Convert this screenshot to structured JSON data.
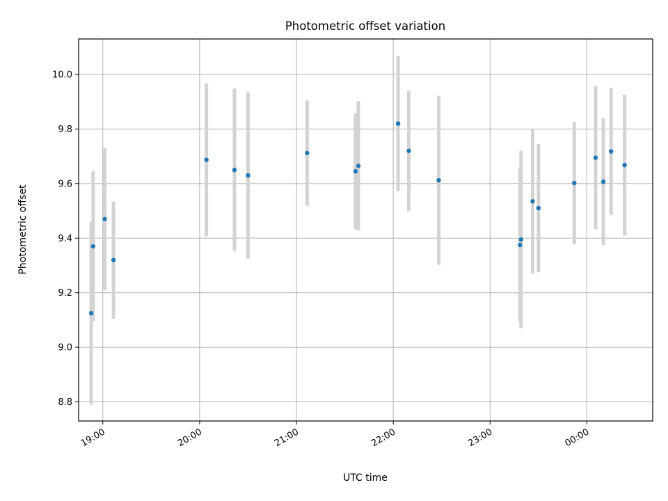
{
  "chart_data": {
    "type": "scatter",
    "title": "Photometric offset variation",
    "xlabel": "UTC time",
    "ylabel": "Photometric offset",
    "x_unit": "hours since 18:00 UTC",
    "xlim": [
      18.75,
      24.68
    ],
    "ylim": [
      8.73,
      10.13
    ],
    "x_ticks": [
      {
        "value": 19,
        "label": "19:00"
      },
      {
        "value": 20,
        "label": "20:00"
      },
      {
        "value": 21,
        "label": "21:00"
      },
      {
        "value": 22,
        "label": "22:00"
      },
      {
        "value": 23,
        "label": "23:00"
      },
      {
        "value": 24,
        "label": "00:00"
      }
    ],
    "y_ticks": [
      8.8,
      9.0,
      9.2,
      9.4,
      9.6,
      9.8,
      10.0
    ],
    "y_tick_labels": [
      "8.8",
      "9.0",
      "9.2",
      "9.4",
      "9.6",
      "9.8",
      "10.0"
    ],
    "grid": true,
    "marker_color": "#1f77b4",
    "errorbar_color": "#d3d3d3",
    "points": [
      {
        "x": 18.88,
        "y": 9.125,
        "err": 0.335
      },
      {
        "x": 18.9,
        "y": 9.37,
        "err": 0.275
      },
      {
        "x": 19.02,
        "y": 9.47,
        "err": 0.26
      },
      {
        "x": 19.11,
        "y": 9.32,
        "err": 0.215
      },
      {
        "x": 20.07,
        "y": 9.687,
        "err": 0.28
      },
      {
        "x": 20.36,
        "y": 9.65,
        "err": 0.298
      },
      {
        "x": 20.5,
        "y": 9.63,
        "err": 0.305
      },
      {
        "x": 21.11,
        "y": 9.712,
        "err": 0.193
      },
      {
        "x": 21.61,
        "y": 9.645,
        "err": 0.212
      },
      {
        "x": 21.64,
        "y": 9.665,
        "err": 0.237
      },
      {
        "x": 22.05,
        "y": 9.82,
        "err": 0.248
      },
      {
        "x": 22.16,
        "y": 9.72,
        "err": 0.22
      },
      {
        "x": 22.47,
        "y": 9.612,
        "err": 0.31
      },
      {
        "x": 23.31,
        "y": 9.375,
        "err": 0.28
      },
      {
        "x": 23.32,
        "y": 9.395,
        "err": 0.325
      },
      {
        "x": 23.44,
        "y": 9.535,
        "err": 0.265
      },
      {
        "x": 23.5,
        "y": 9.51,
        "err": 0.235
      },
      {
        "x": 23.87,
        "y": 9.602,
        "err": 0.225
      },
      {
        "x": 24.09,
        "y": 9.695,
        "err": 0.262
      },
      {
        "x": 24.17,
        "y": 9.607,
        "err": 0.232
      },
      {
        "x": 24.25,
        "y": 9.718,
        "err": 0.233
      },
      {
        "x": 24.39,
        "y": 9.668,
        "err": 0.258
      }
    ]
  }
}
